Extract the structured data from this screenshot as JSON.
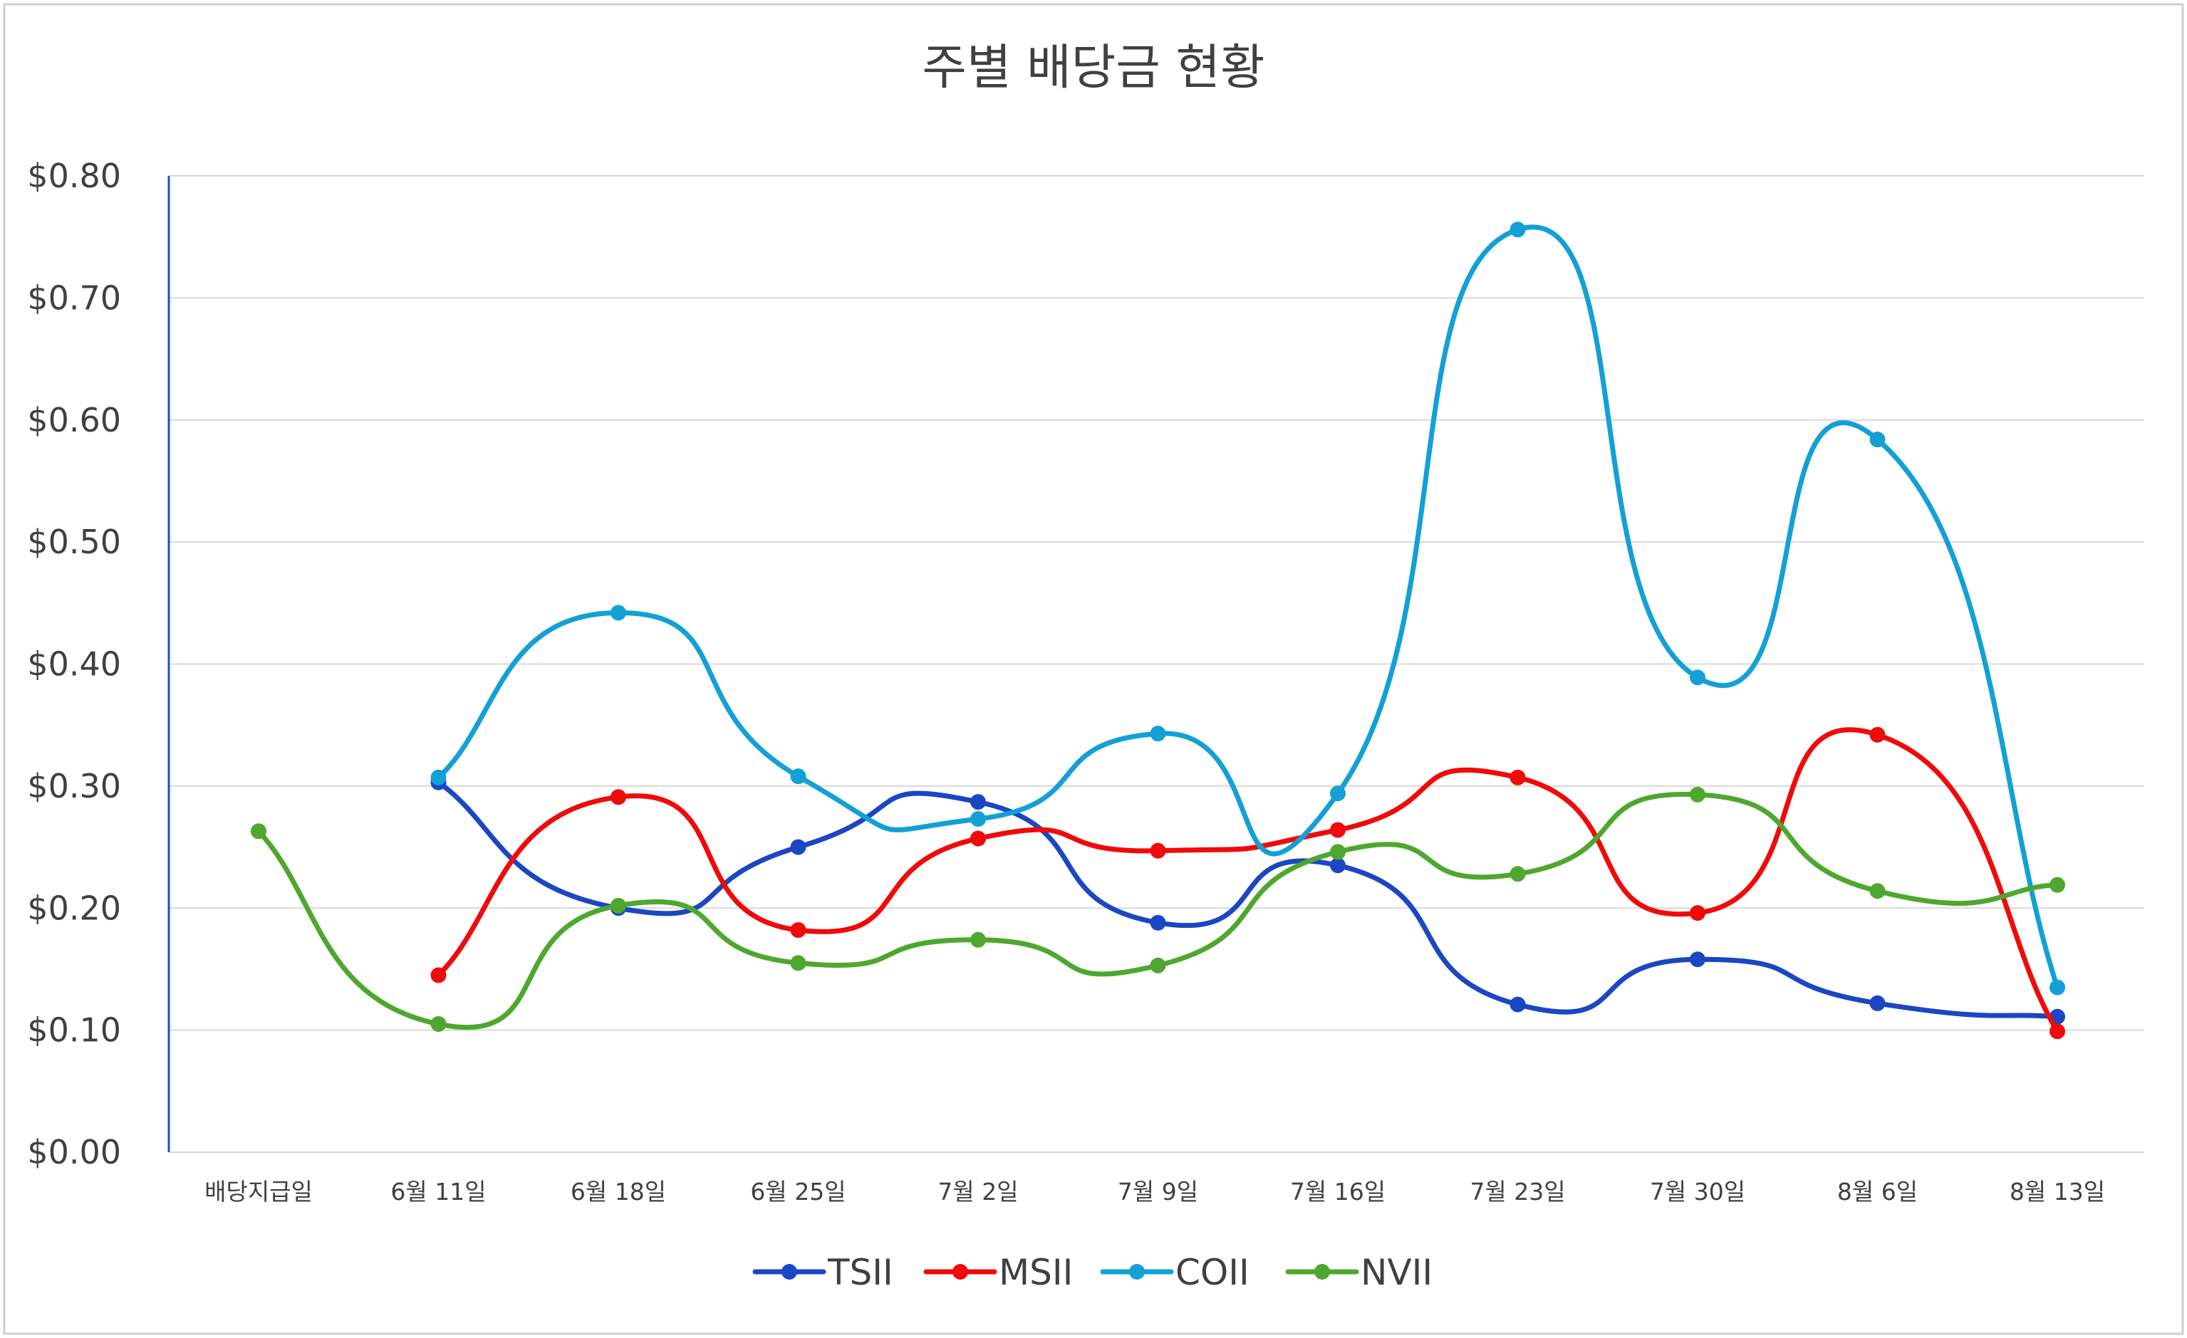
{
  "chart_data": {
    "type": "line",
    "title": "주별 배당금 현황",
    "xlabel": "",
    "ylabel": "",
    "categories": [
      "배당지급일",
      "6월 11일",
      "6월 18일",
      "6월 25일",
      "7월 2일",
      "7월 9일",
      "7월 16일",
      "7월 23일",
      "7월 30일",
      "8월 6일",
      "8월 13일"
    ],
    "ylim": [
      0,
      0.8
    ],
    "yticks": [
      {
        "value": 0.0,
        "label": "$0.00"
      },
      {
        "value": 0.1,
        "label": "$0.10"
      },
      {
        "value": 0.2,
        "label": "$0.20"
      },
      {
        "value": 0.3,
        "label": "$0.30"
      },
      {
        "value": 0.4,
        "label": "$0.40"
      },
      {
        "value": 0.5,
        "label": "$0.50"
      },
      {
        "value": 0.6,
        "label": "$0.60"
      },
      {
        "value": 0.7,
        "label": "$0.70"
      },
      {
        "value": 0.8,
        "label": "$0.80"
      }
    ],
    "smooth": true,
    "grid": true,
    "legend_position": "bottom",
    "series": [
      {
        "name": "TSII",
        "color": "#1b46c4",
        "values": [
          null,
          0.303,
          0.2,
          0.25,
          0.287,
          0.188,
          0.235,
          0.121,
          0.158,
          0.122,
          0.111
        ]
      },
      {
        "name": "MSII",
        "color": "#f00a0a",
        "values": [
          null,
          0.145,
          0.291,
          0.182,
          0.257,
          0.247,
          0.264,
          0.307,
          0.196,
          0.342,
          0.099
        ]
      },
      {
        "name": "COII",
        "color": "#12a0d6",
        "values": [
          null,
          0.307,
          0.442,
          0.308,
          0.273,
          0.343,
          0.294,
          0.756,
          0.389,
          0.584,
          0.135
        ]
      },
      {
        "name": "NVII",
        "color": "#4ea72e",
        "values": [
          0.263,
          0.105,
          0.202,
          0.155,
          0.174,
          0.153,
          0.246,
          0.228,
          0.293,
          0.214,
          0.219
        ]
      }
    ]
  }
}
